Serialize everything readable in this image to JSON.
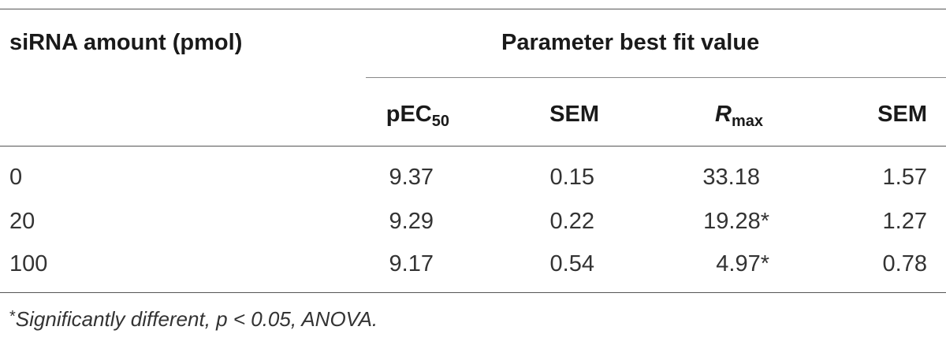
{
  "table": {
    "row_header": "siRNA amount (pmol)",
    "group_header": "Parameter best fit value",
    "columns": {
      "pec50_base": "pEC",
      "pec50_sub": "50",
      "sem1": "SEM",
      "rmax_base": "R",
      "rmax_sub": "max",
      "sem2": "SEM"
    },
    "rows": [
      {
        "amount": "0",
        "pec50": "9.37",
        "sem1": "0.15",
        "rmax": "33.18",
        "sem2": "1.57"
      },
      {
        "amount": "20",
        "pec50": "9.29",
        "sem1": "0.22",
        "rmax": "19.28*",
        "sem2": "1.27"
      },
      {
        "amount": "100",
        "pec50": "9.17",
        "sem1": "0.54",
        "rmax": "4.97*",
        "sem2": "0.78"
      }
    ]
  },
  "footnote": {
    "marker": "*",
    "text": "Significantly different, p < 0.05, ANOVA."
  }
}
